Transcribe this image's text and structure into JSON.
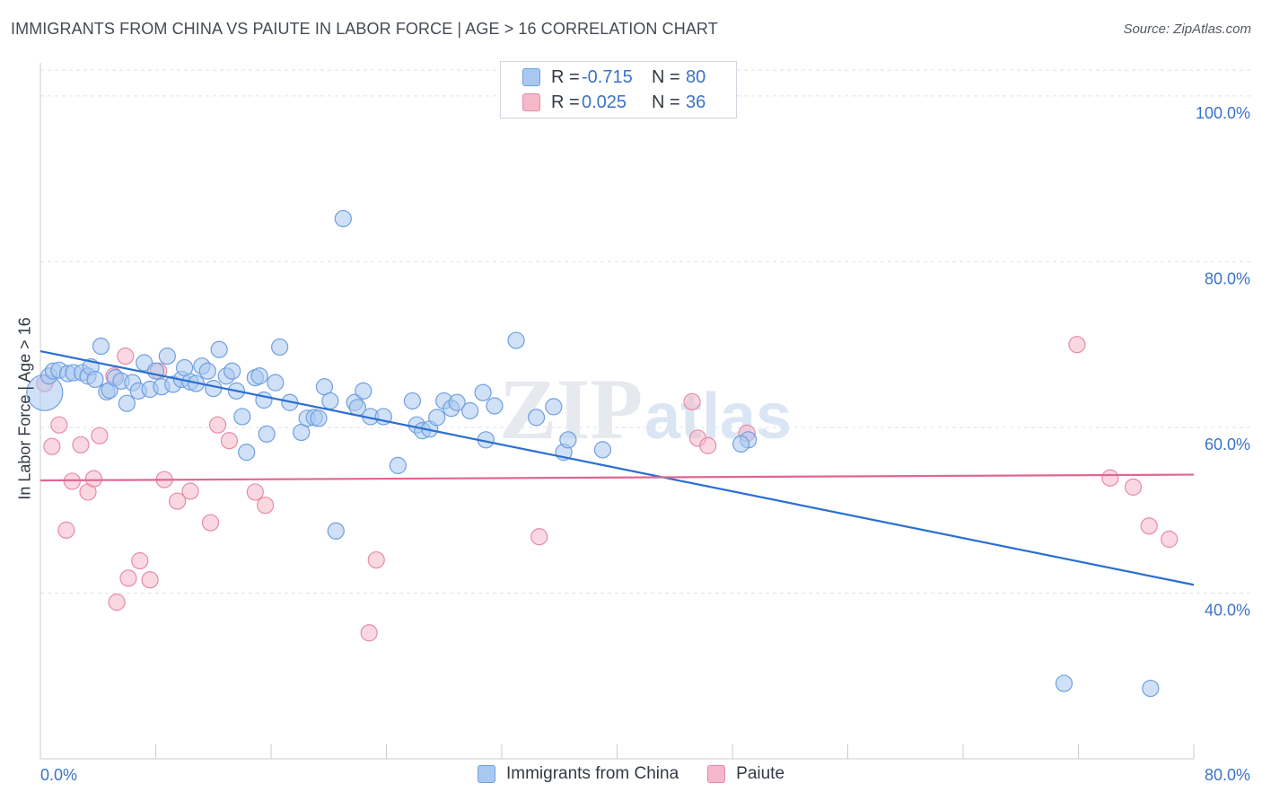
{
  "title": "IMMIGRANTS FROM CHINA VS PAIUTE IN LABOR FORCE | AGE > 16 CORRELATION CHART",
  "source": "Source: ZipAtlas.com",
  "legend_top": [
    {
      "r_label": "R =",
      "r_value": "-0.715",
      "n_label": "N =",
      "n_value": "80",
      "color": "#a9c8f0"
    },
    {
      "r_label": "R =",
      "r_value": "0.025",
      "n_label": "N =",
      "n_value": "36",
      "color": "#f5b8cb"
    }
  ],
  "legend_bottom": [
    "Immigrants from China",
    "Paiute"
  ],
  "colors": {
    "blue_fill": "#a9c8f0",
    "blue_stroke": "#6f9fe0",
    "blue_line": "#2a6fd0",
    "pink_fill": "#f5b8cb",
    "pink_stroke": "#e68aa6",
    "pink_line": "#e06690",
    "tick_text": "#3a73c8",
    "grid": "#dde2e8"
  },
  "chart_data": {
    "type": "scatter",
    "title": "IMMIGRANTS FROM CHINA VS PAIUTE IN LABOR FORCE | AGE > 16 CORRELATION CHART",
    "xlabel": "",
    "ylabel": "In Labor Force | Age > 16",
    "xlim": [
      0,
      80
    ],
    "ylim": [
      20,
      104
    ],
    "x_tick_labels": [
      "0.0%",
      "80.0%"
    ],
    "y_ticks": [
      40,
      60,
      80,
      100
    ],
    "y_tick_labels": [
      "40.0%",
      "60.0%",
      "80.0%",
      "100.0%"
    ],
    "grid": true,
    "legend_position": "top-center",
    "series": [
      {
        "name": "Immigrants from China",
        "r": -0.715,
        "n": 80,
        "trend": {
          "x": [
            0,
            80
          ],
          "y": [
            69.2,
            41.0
          ]
        },
        "points": [
          [
            0.3,
            64.2
          ],
          [
            0.6,
            66.2
          ],
          [
            0.9,
            66.8
          ],
          [
            1.3,
            66.9
          ],
          [
            1.9,
            66.5
          ],
          [
            2.3,
            66.6
          ],
          [
            2.9,
            66.6
          ],
          [
            3.3,
            66.2
          ],
          [
            3.5,
            67.3
          ],
          [
            3.8,
            65.8
          ],
          [
            4.2,
            69.8
          ],
          [
            4.6,
            64.3
          ],
          [
            4.8,
            64.5
          ],
          [
            5.2,
            66.0
          ],
          [
            5.6,
            65.6
          ],
          [
            6.0,
            62.9
          ],
          [
            6.4,
            65.4
          ],
          [
            6.8,
            64.4
          ],
          [
            7.2,
            67.8
          ],
          [
            7.6,
            64.6
          ],
          [
            8.0,
            66.8
          ],
          [
            8.4,
            64.9
          ],
          [
            8.8,
            68.6
          ],
          [
            9.2,
            65.2
          ],
          [
            9.8,
            65.8
          ],
          [
            10.0,
            67.2
          ],
          [
            10.4,
            65.5
          ],
          [
            10.8,
            65.3
          ],
          [
            11.2,
            67.4
          ],
          [
            11.6,
            66.8
          ],
          [
            12.0,
            64.7
          ],
          [
            12.4,
            69.4
          ],
          [
            12.9,
            66.2
          ],
          [
            13.3,
            66.8
          ],
          [
            13.6,
            64.4
          ],
          [
            14.0,
            61.3
          ],
          [
            14.3,
            57.0
          ],
          [
            14.9,
            66.0
          ],
          [
            15.2,
            66.2
          ],
          [
            15.5,
            63.3
          ],
          [
            15.7,
            59.2
          ],
          [
            16.3,
            65.4
          ],
          [
            16.6,
            69.7
          ],
          [
            17.3,
            63.0
          ],
          [
            18.1,
            59.4
          ],
          [
            18.5,
            61.1
          ],
          [
            19.0,
            61.2
          ],
          [
            19.3,
            61.1
          ],
          [
            19.7,
            64.9
          ],
          [
            20.1,
            63.2
          ],
          [
            20.5,
            47.5
          ],
          [
            21.0,
            85.2
          ],
          [
            21.8,
            63.0
          ],
          [
            22.0,
            62.4
          ],
          [
            22.4,
            64.4
          ],
          [
            22.9,
            61.3
          ],
          [
            23.8,
            61.3
          ],
          [
            24.8,
            55.4
          ],
          [
            25.8,
            63.2
          ],
          [
            26.1,
            60.3
          ],
          [
            26.5,
            59.6
          ],
          [
            27.0,
            59.8
          ],
          [
            27.5,
            61.2
          ],
          [
            28.0,
            63.2
          ],
          [
            28.5,
            62.3
          ],
          [
            28.9,
            63.0
          ],
          [
            29.8,
            62.0
          ],
          [
            30.7,
            64.2
          ],
          [
            30.9,
            58.5
          ],
          [
            31.5,
            62.6
          ],
          [
            33.0,
            70.5
          ],
          [
            34.4,
            61.2
          ],
          [
            35.6,
            62.5
          ],
          [
            36.3,
            57.0
          ],
          [
            36.6,
            58.5
          ],
          [
            39.0,
            57.3
          ],
          [
            49.1,
            58.5
          ],
          [
            71.0,
            29.1
          ],
          [
            77.0,
            28.5
          ],
          [
            48.6,
            58.0
          ]
        ]
      },
      {
        "name": "Paiute",
        "r": 0.025,
        "n": 36,
        "trend": {
          "x": [
            0,
            80
          ],
          "y": [
            53.6,
            54.3
          ]
        },
        "points": [
          [
            0.3,
            65.3
          ],
          [
            0.8,
            57.7
          ],
          [
            1.3,
            60.3
          ],
          [
            1.8,
            47.6
          ],
          [
            2.2,
            53.5
          ],
          [
            2.8,
            57.9
          ],
          [
            3.3,
            52.2
          ],
          [
            3.7,
            53.8
          ],
          [
            4.1,
            59.0
          ],
          [
            5.1,
            66.2
          ],
          [
            5.3,
            38.9
          ],
          [
            5.9,
            68.6
          ],
          [
            6.1,
            41.8
          ],
          [
            6.9,
            43.9
          ],
          [
            7.6,
            41.6
          ],
          [
            8.2,
            66.8
          ],
          [
            8.6,
            53.7
          ],
          [
            9.5,
            51.1
          ],
          [
            10.4,
            52.3
          ],
          [
            11.8,
            48.5
          ],
          [
            12.3,
            60.3
          ],
          [
            13.1,
            58.4
          ],
          [
            14.9,
            52.2
          ],
          [
            15.6,
            50.6
          ],
          [
            22.8,
            35.2
          ],
          [
            23.3,
            44.0
          ],
          [
            34.6,
            46.8
          ],
          [
            45.2,
            63.1
          ],
          [
            45.6,
            58.7
          ],
          [
            46.3,
            57.8
          ],
          [
            49.0,
            59.3
          ],
          [
            71.9,
            70.0
          ],
          [
            74.2,
            53.9
          ],
          [
            75.8,
            52.8
          ],
          [
            76.9,
            48.1
          ],
          [
            78.3,
            46.5
          ]
        ]
      }
    ]
  }
}
